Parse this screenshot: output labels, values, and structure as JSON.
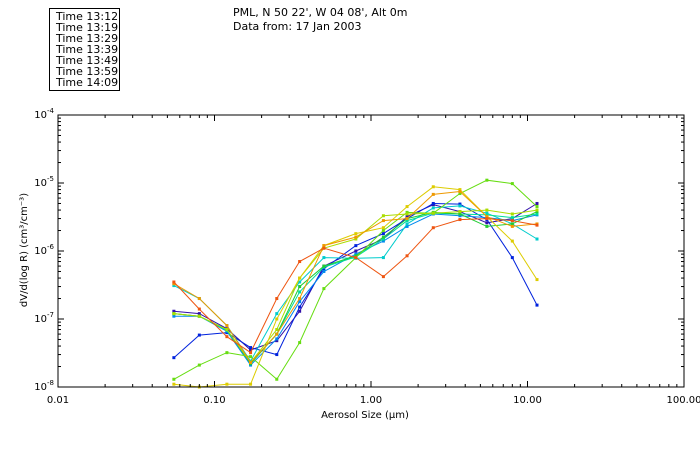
{
  "header": {
    "location": "PML, N 50 22', W 04 08', Alt 0m",
    "data_from": "Data from: 17 Jan 2003"
  },
  "chart_data": {
    "type": "line",
    "xscale": "log",
    "yscale": "log",
    "xlabel": "Aerosol Size (μm)",
    "ylabel": "dV/d(log R) (cm³/cm⁻³)",
    "xlim": [
      0.01,
      100
    ],
    "ylim": [
      1e-08,
      0.0001
    ],
    "grid": false,
    "legend_position": "top-left",
    "x_tick_labels": [
      "0.01",
      "0.10",
      "1.00",
      "10.00",
      "100.00"
    ],
    "y_tick_labels": [
      {
        "mantissa": "10",
        "exp": "-8",
        "value": 1e-08
      },
      {
        "mantissa": "10",
        "exp": "-7",
        "value": 1e-07
      },
      {
        "mantissa": "10",
        "exp": "-6",
        "value": 1e-06
      },
      {
        "mantissa": "10",
        "exp": "-5",
        "value": 1e-05
      },
      {
        "mantissa": "10",
        "exp": "-4",
        "value": 0.0001
      }
    ],
    "x": [
      0.055,
      0.08,
      0.12,
      0.17,
      0.25,
      0.35,
      0.5,
      0.8,
      1.2,
      1.7,
      2.5,
      3.7,
      5.5,
      8.0,
      11.5
    ],
    "series": [
      {
        "name": "Time 13:12",
        "color": "#3311aa",
        "values": [
          1.3e-07,
          1.2e-07,
          7.2e-08,
          3.5e-08,
          4.8e-08,
          1.3e-07,
          6e-07,
          1e-06,
          1.5e-06,
          3.2e-06,
          4.8e-06,
          3.8e-06,
          2.6e-06,
          3e-06,
          5e-06
        ]
      },
      {
        "name": "Time 13:19",
        "color": "#0022dd",
        "values": [
          2.7e-08,
          5.8e-08,
          6.3e-08,
          3.8e-08,
          3e-08,
          1.5e-07,
          5.5e-07,
          1.2e-06,
          1.8e-06,
          3e-06,
          5e-06,
          4.9e-06,
          2.9e-06,
          8e-07,
          1.6e-07
        ]
      },
      {
        "name": "Time 13:29",
        "color": "#0088ee",
        "values": [
          1.1e-07,
          1.1e-07,
          6.6e-08,
          2.1e-08,
          5.1e-08,
          1.8e-07,
          5e-07,
          9e-07,
          1.4e-06,
          2.3e-06,
          3.5e-06,
          3.3e-06,
          3.1e-06,
          2.8e-06,
          3.4e-06
        ]
      },
      {
        "name": "Time 13:39",
        "color": "#00cccc",
        "values": [
          3.1e-07,
          2e-07,
          8e-08,
          2.4e-08,
          1.2e-07,
          3.5e-07,
          8e-07,
          7.8e-07,
          8e-07,
          2.5e-06,
          4.3e-06,
          4.6e-06,
          3.6e-06,
          2.5e-06,
          1.5e-06
        ]
      },
      {
        "name": "Time 13:49",
        "color": "#00dd99",
        "values": [
          1.2e-07,
          1.1e-07,
          6.8e-08,
          2.3e-08,
          6e-08,
          2.5e-07,
          5.8e-07,
          8.2e-07,
          1.5e-06,
          2.8e-06,
          3.6e-06,
          3.5e-06,
          3.4e-06,
          3.1e-06,
          3.5e-06
        ]
      },
      {
        "name": "Time 13:59",
        "color": "#22cc33",
        "values": [
          1.2e-07,
          1.1e-07,
          7e-08,
          2.2e-08,
          6e-08,
          3e-07,
          6e-07,
          8.5e-07,
          1.6e-06,
          3e-06,
          3.7e-06,
          3.5e-06,
          2.3e-06,
          2.5e-06,
          3.8e-06
        ]
      },
      {
        "name": "Time 14:09",
        "color": "#66dd11",
        "values": [
          1.3e-08,
          2.1e-08,
          3.2e-08,
          2.8e-08,
          1.3e-08,
          4.5e-08,
          2.8e-07,
          8e-07,
          2e-06,
          3.7e-06,
          3.6e-06,
          7e-06,
          1.1e-05,
          9.8e-06,
          4.5e-06
        ]
      },
      {
        "color": "#aadd00",
        "values": [
          1.2e-07,
          1.1e-07,
          7e-08,
          2.3e-08,
          7e-08,
          4e-07,
          1.1e-06,
          1.5e-06,
          3.3e-06,
          3.5e-06,
          3.6e-06,
          3.8e-06,
          4e-06,
          3.5e-06,
          4e-06
        ]
      },
      {
        "color": "#ddcc00",
        "values": [
          1.1e-08,
          1e-08,
          1.1e-08,
          1.1e-08,
          1e-07,
          4e-07,
          1.2e-06,
          1.8e-06,
          2.2e-06,
          4.5e-06,
          8.8e-06,
          8e-06,
          3.2e-06,
          1.4e-06,
          3.8e-07
        ]
      },
      {
        "color": "#ee9900",
        "values": [
          3.3e-07,
          2e-07,
          8e-08,
          2.3e-08,
          6e-08,
          2e-07,
          1.2e-06,
          1.6e-06,
          2.8e-06,
          3e-06,
          6.8e-06,
          7.5e-06,
          3.2e-06,
          2.3e-06,
          2.5e-06
        ]
      },
      {
        "color": "#ee5511",
        "values": [
          3.5e-07,
          1.4e-07,
          5.5e-08,
          3.2e-08,
          2e-07,
          7e-07,
          1.1e-06,
          8e-07,
          4.2e-07,
          8.5e-07,
          2.2e-06,
          2.9e-06,
          3e-06,
          2.8e-06,
          2.4e-06
        ]
      }
    ]
  }
}
